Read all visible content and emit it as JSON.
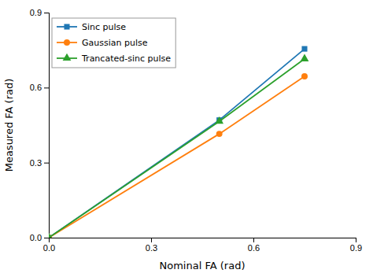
{
  "chart_data": {
    "type": "line",
    "x": [
      0.0,
      0.5,
      0.75
    ],
    "series": [
      {
        "name": "Sinc pulse",
        "marker": "square",
        "values": [
          0.0,
          0.47,
          0.755
        ]
      },
      {
        "name": "Gaussian pulse",
        "marker": "circle",
        "values": [
          0.0,
          0.415,
          0.645
        ]
      },
      {
        "name": "Trancated-sinc pulse",
        "marker": "triangle",
        "values": [
          0.0,
          0.465,
          0.715
        ]
      }
    ],
    "x_label": "Nominal FA (rad)",
    "y_label": "Measured FA (rad)",
    "xlim": [
      0.0,
      0.9
    ],
    "ylim": [
      0.0,
      0.9
    ],
    "xticks": [
      {
        "value": 0.0,
        "label": "0.0"
      },
      0.3,
      0.6,
      0.9
    ],
    "yticks": [
      {
        "value": 0.0,
        "label": "0.0"
      },
      0.3,
      0.6,
      0.9
    ],
    "grid": false,
    "legend": "upper left"
  }
}
